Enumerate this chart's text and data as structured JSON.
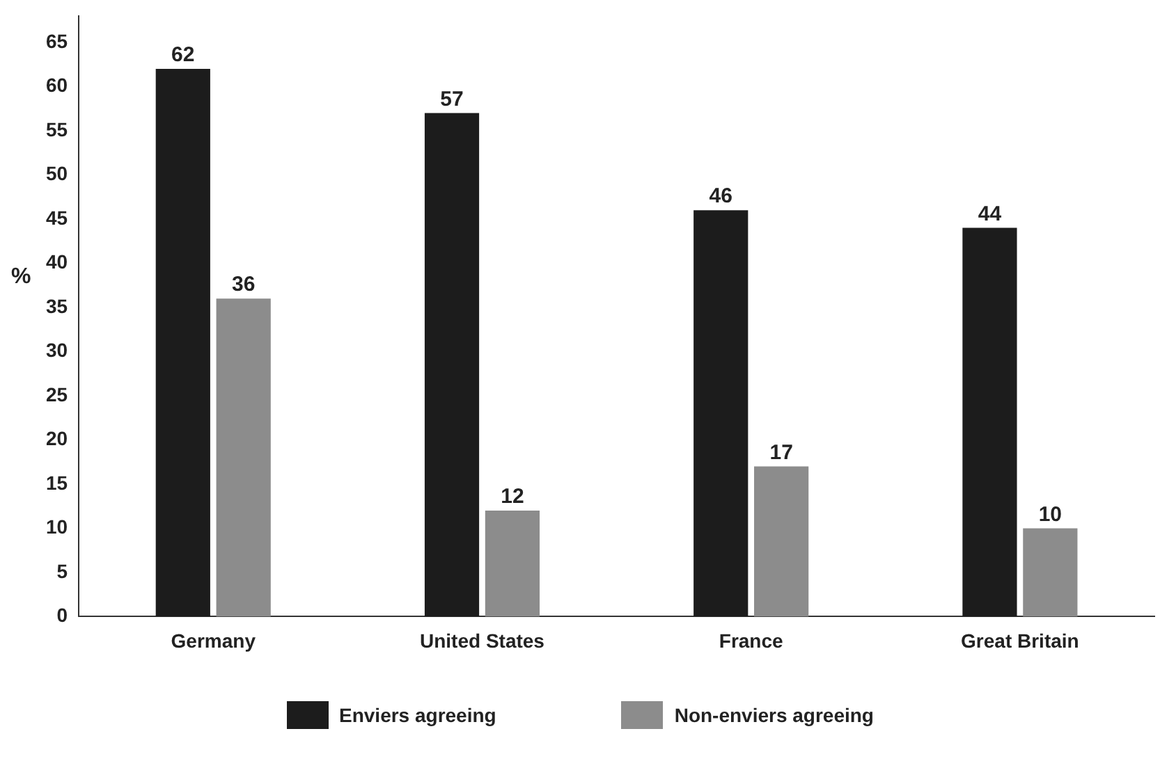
{
  "chart_data": {
    "type": "bar",
    "ylabel": "%",
    "categories": [
      "Germany",
      "United States",
      "France",
      "Great Britain"
    ],
    "series": [
      {
        "name": "Enviers agreeing",
        "color": "#1c1c1c",
        "values": [
          62,
          57,
          46,
          44
        ]
      },
      {
        "name": "Non-enviers agreeing",
        "color": "#8c8c8c",
        "values": [
          36,
          12,
          17,
          10
        ]
      }
    ],
    "ylim": [
      0,
      68
    ],
    "yticks": [
      0,
      5,
      10,
      15,
      20,
      25,
      30,
      35,
      40,
      45,
      50,
      55,
      60,
      65
    ],
    "grid": false,
    "legend": "bottom",
    "data_labels": true
  }
}
